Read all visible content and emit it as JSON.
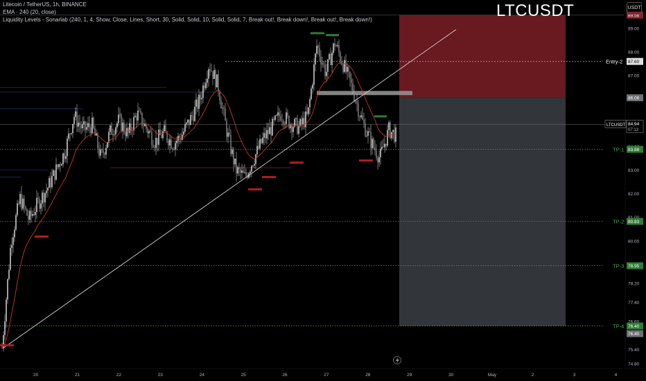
{
  "header": {
    "line1": "Litecoin / TetherUS, 1h, BINANCE",
    "line2": "EMA · 240 (20, close)",
    "line3": "Liquidity Levels - Sonarlab (240, 1, 4, Show, Close, Lines, Short, 30, Solid, Solid, 10, Solid, Solid, 7, Break out!, Break down!, Break out!, Break down!)"
  },
  "big_title": "LTCUSDT",
  "currency_button": "USDT",
  "colors": {
    "background": "#000000",
    "candle": "#e8e8e8",
    "ema": "#c0392b",
    "stop_zone": "#7b1d26",
    "target_zone": "#3b3e44",
    "tp_line": "#4caf50",
    "entry_line": "#9e9e9e",
    "liq_high": "#2e7d32",
    "liq_low": "#b71c1c",
    "trendline": "#d6d6d6"
  },
  "chart_data": {
    "type": "candlestick",
    "symbol": "LTCUSDT",
    "timeframe": "1h",
    "x_ticks": [
      "20",
      "21",
      "22",
      "23",
      "24",
      "25",
      "26",
      "27",
      "28",
      "29",
      "30",
      "May",
      "2",
      "3",
      "4"
    ],
    "y_ticks": [
      "89.00",
      "88.00",
      "87.00",
      "86.00",
      "85.00",
      "84.00",
      "83.00",
      "82.00",
      "81.00",
      "80.00",
      "79.00",
      "78.20",
      "77.40",
      "76.60",
      "75.40",
      "74.80"
    ],
    "ylim": [
      74.6,
      90.2
    ],
    "price_path": [
      [
        "20",
        75.5
      ],
      [
        "20",
        80.0
      ],
      [
        "20",
        81.8
      ],
      [
        "20",
        80.9
      ],
      [
        "20",
        81.6
      ],
      [
        "21",
        82.2
      ],
      [
        "21",
        83.0
      ],
      [
        "21",
        83.8
      ],
      [
        "21",
        85.3
      ],
      [
        "21",
        84.7
      ],
      [
        "22",
        84.9
      ],
      [
        "22",
        83.5
      ],
      [
        "22",
        84.6
      ],
      [
        "22",
        85.1
      ],
      [
        "22",
        84.5
      ],
      [
        "23",
        85.4
      ],
      [
        "23",
        84.8
      ],
      [
        "23",
        84.2
      ],
      [
        "23",
        84.6
      ],
      [
        "23",
        84.1
      ],
      [
        "24",
        84.5
      ],
      [
        "24",
        85.2
      ],
      [
        "24",
        86.0
      ],
      [
        "24",
        87.5
      ],
      [
        "24",
        86.6
      ],
      [
        "25",
        84.6
      ],
      [
        "25",
        83.0
      ],
      [
        "25",
        82.7
      ],
      [
        "25",
        83.5
      ],
      [
        "25",
        84.3
      ],
      [
        "26",
        84.8
      ],
      [
        "26",
        85.4
      ],
      [
        "26",
        85.0
      ],
      [
        "26",
        84.8
      ],
      [
        "26",
        85.3
      ],
      [
        "27",
        88.3
      ],
      [
        "27",
        87.1
      ],
      [
        "27",
        88.4
      ],
      [
        "27",
        87.4
      ],
      [
        "27",
        86.4
      ],
      [
        "28",
        85.1
      ],
      [
        "28",
        84.2
      ],
      [
        "28",
        83.5
      ],
      [
        "28",
        84.7
      ],
      [
        "28",
        84.4
      ]
    ],
    "series": [
      {
        "name": "EMA · 240 (20, close)",
        "type": "line"
      }
    ],
    "trade_box": {
      "entry": 86.06,
      "stop": 89.56,
      "entry_label_value": "87.60",
      "targets": [
        {
          "label": "TP-1",
          "value": 83.88
        },
        {
          "label": "TP-2",
          "value": 80.83
        },
        {
          "label": "TP-3",
          "value": 78.95
        },
        {
          "label": "TP-4",
          "value": 76.4
        }
      ]
    },
    "entry_marker": {
      "label": "Entry-2",
      "value": 87.6
    },
    "last_price": {
      "symbol": "LTCUSDT",
      "value": "84.94",
      "countdown": "07:13"
    },
    "price_badges": [
      "89.56",
      "87.60",
      "86.06",
      "84.94",
      "83.88",
      "80.83",
      "78.95",
      "76.40",
      "76.40"
    ],
    "liquidity_highs": [
      88.78,
      88.7,
      85.26
    ],
    "liquidity_lows": [
      83.33,
      82.72,
      82.2,
      81.85,
      80.2,
      75.6,
      83.42
    ]
  }
}
